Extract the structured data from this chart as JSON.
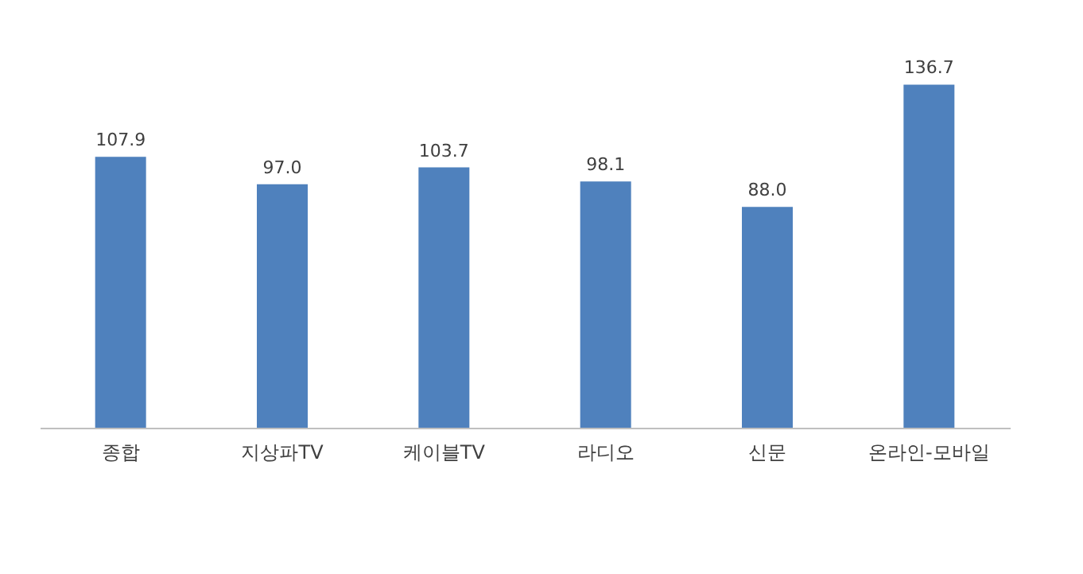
{
  "chart_data": {
    "type": "bar",
    "categories": [
      "종합",
      "지상파TV",
      "케이블TV",
      "라디오",
      "신문",
      "온라인-모바일"
    ],
    "values": [
      107.9,
      97.0,
      103.7,
      98.1,
      88.0,
      136.7
    ],
    "color": "#4f81bd",
    "value_labels": [
      "107.9",
      "97.0",
      "103.7",
      "98.1",
      "88.0",
      "136.7"
    ],
    "tick_labels": "x",
    "grid": false
  }
}
